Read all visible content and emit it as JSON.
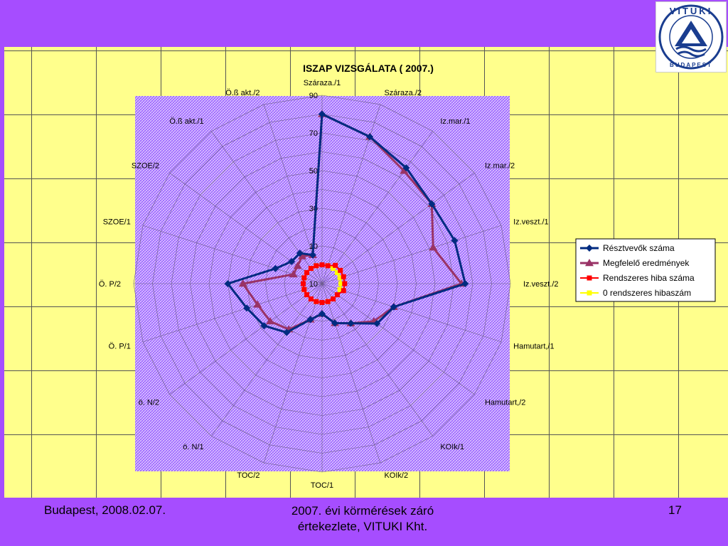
{
  "footer": {
    "left": "Budapest, 2008.02.07.",
    "center_line1": "2007. évi körmérések záró",
    "center_line2": "értekezlete, VITUKI Kht.",
    "page": "17"
  },
  "logo": {
    "name": "VITUKI",
    "sub": "BUDAPEST"
  },
  "colors": {
    "background": "#a64dff",
    "slide_body": "#ffff8c",
    "plot_area": "#c9a6ff",
    "series": [
      "#002b80",
      "#993366",
      "#ff0000",
      "#ffff00"
    ]
  },
  "chart_data": {
    "type": "radar",
    "title": "ISZAP VIZSGÁLATA ( 2007.)",
    "categories": [
      "Száraza./1",
      "Száraza./2",
      "Iz.mar./1",
      "Iz.mar./2",
      "Iz.veszt./1",
      "Iz.veszt./2",
      "Hamutart,/1",
      "Hamutart,/2",
      "KOIk/1",
      "KOIk/2",
      "TOC/1",
      "TOC/2",
      "ö. N/1",
      "ö. N/2",
      "Ö. P/1",
      "Ö. P/2",
      "SZOE/1",
      "SZOE/2",
      "Ö.ß akt./1",
      "Ö.ß akt./2"
    ],
    "radial_ticks": [
      "90",
      "70",
      "50",
      "30",
      "10",
      "10"
    ],
    "rlim": [
      -10,
      90
    ],
    "legend_position": "right",
    "series": [
      {
        "name": "Résztvevők száma",
        "marker": "diamond",
        "values": [
          80,
          72,
          66,
          62,
          64,
          66,
          30,
          26,
          16,
          12,
          6,
          10,
          22,
          28,
          32,
          40,
          16,
          10,
          10,
          6
        ]
      },
      {
        "name": "Megfelelő eredmények",
        "marker": "triangle",
        "values": [
          80,
          72,
          64,
          62,
          52,
          64,
          30,
          24,
          16,
          12,
          6,
          10,
          20,
          24,
          26,
          32,
          6,
          6,
          8,
          6
        ]
      },
      {
        "name": "Rendszeres hiba száma",
        "marker": "square",
        "values": [
          0,
          0,
          2,
          2,
          2,
          2,
          2,
          0,
          0,
          0,
          0,
          0,
          0,
          0,
          0,
          0,
          0,
          0,
          0,
          0
        ]
      },
      {
        "name": "0 rendszeres hibaszám",
        "marker": "square",
        "values": [
          0,
          0,
          0,
          0,
          0,
          0,
          0,
          0,
          0,
          0,
          0,
          0,
          0,
          0,
          0,
          0,
          0,
          0,
          0,
          0
        ]
      }
    ]
  }
}
